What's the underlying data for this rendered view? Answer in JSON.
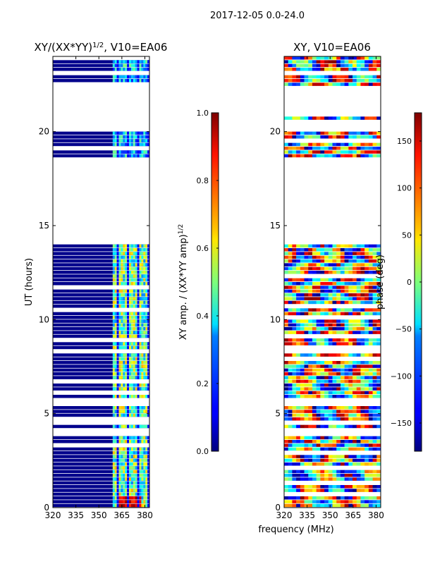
{
  "figure": {
    "suptitle": "2017-12-05 0.0-24.0",
    "xlabel": "frequency (MHz)"
  },
  "chart_data": [
    {
      "type": "heatmap",
      "title": "XY/(XX*YY)^1/2, V10=EA06",
      "title_main": "XY/(XX*YY)",
      "title_sup": "1/2",
      "title_rest": ", V10=EA06",
      "xlabel": "frequency (MHz)",
      "ylabel": "UT (hours)",
      "xlim": [
        320,
        383
      ],
      "ylim": [
        0,
        24
      ],
      "xticks": [
        320,
        335,
        350,
        365,
        380
      ],
      "yticks": [
        0,
        5,
        10,
        15,
        20
      ],
      "active_band_mhz": [
        359,
        383
      ],
      "gaps_hours": [
        [
          14.0,
          18.7
        ],
        [
          20.1,
          20.6
        ],
        [
          20.8,
          22.1
        ],
        [
          0.72,
          0.82
        ],
        [
          5.6,
          5.85
        ],
        [
          4.4,
          4.6
        ],
        [
          3.9,
          4.1
        ]
      ],
      "colorbar": {
        "label": "XY amp. / (XX*YY amp)^1/2",
        "label_main": "XY amp. / (XX*YY amp)",
        "label_sup": "1/2",
        "min": 0.0,
        "max": 1.0,
        "ticks": [
          "0.0",
          "0.2",
          "0.4",
          "0.6",
          "0.8",
          "1.0"
        ],
        "colormap": "jet"
      }
    },
    {
      "type": "heatmap",
      "title": "XY, V10=EA06",
      "xlabel": "frequency (MHz)",
      "ylabel": "",
      "xlim": [
        320,
        383
      ],
      "ylim": [
        0,
        24
      ],
      "xticks": [
        320,
        335,
        350,
        365,
        380
      ],
      "yticks": [
        0,
        5,
        10,
        15,
        20
      ],
      "gaps_hours": [
        [
          14.0,
          18.7
        ],
        [
          20.1,
          20.6
        ],
        [
          20.8,
          22.1
        ],
        [
          0.72,
          0.82
        ],
        [
          5.6,
          5.85
        ],
        [
          4.4,
          4.6
        ],
        [
          3.9,
          4.1
        ]
      ],
      "colorbar": {
        "label": "phase (deg)",
        "min": -180,
        "max": 180,
        "ticks": [
          "-150",
          "-100",
          "-50",
          "0",
          "50",
          "100",
          "150"
        ],
        "colormap": "jet"
      }
    }
  ],
  "colors": {
    "jet_dark_blue": "#00007f",
    "jet_blue": "#0000ff",
    "jet_cyan": "#00ffff",
    "jet_yellow": "#ffff00",
    "jet_red": "#ff0000",
    "jet_dark_red": "#7f0000"
  }
}
